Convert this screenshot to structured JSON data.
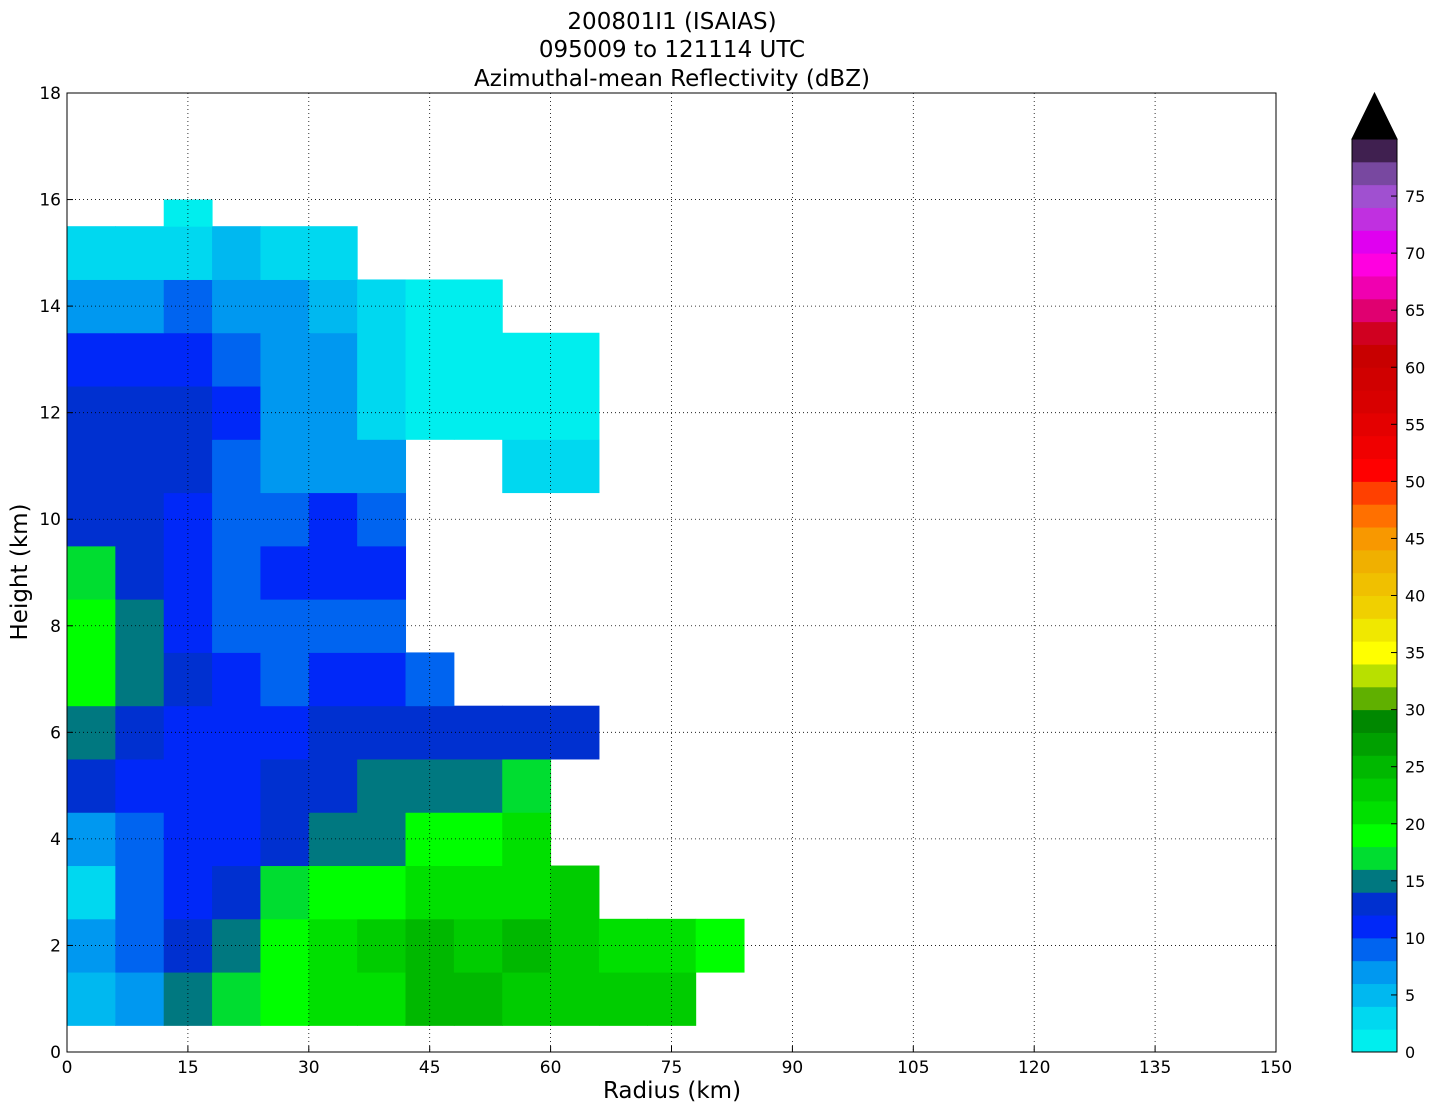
{
  "chart_data": {
    "type": "contourf",
    "title": [
      "200801I1 (ISAIAS)",
      "095009 to 121114 UTC",
      "Azimuthal-mean Reflectivity (dBZ)"
    ],
    "xlabel": "Radius (km)",
    "ylabel": "Height (km)",
    "xlim": [
      0,
      150
    ],
    "ylim": [
      0,
      18
    ],
    "xticks": [
      0,
      15,
      30,
      45,
      60,
      75,
      90,
      105,
      120,
      135,
      150
    ],
    "yticks": [
      0,
      2,
      4,
      6,
      8,
      10,
      12,
      14,
      16,
      18
    ],
    "grid": true,
    "x_edges": [
      0,
      6,
      12,
      18,
      24,
      30,
      36,
      42,
      48,
      54,
      60,
      66,
      72,
      78,
      84
    ],
    "y_edges": [
      0.5,
      1.5,
      2.5,
      3.5,
      4.5,
      5.5,
      6.5,
      7.5,
      8.5,
      9.5,
      10.5,
      11.5,
      12.5,
      13.5,
      14.5,
      15.5,
      16
    ],
    "z": [
      [
        5,
        7,
        15,
        17,
        19,
        21,
        21,
        25,
        25,
        23,
        23,
        23,
        22,
        null
      ],
      [
        7,
        9,
        13,
        15,
        19,
        21,
        23,
        25,
        23,
        25,
        23,
        21,
        21,
        19
      ],
      [
        3,
        8,
        11,
        13,
        17,
        19,
        19,
        21,
        21,
        21,
        23,
        null,
        null,
        null
      ],
      [
        7,
        9,
        11,
        11,
        13,
        15,
        15,
        19,
        19,
        21,
        null,
        null,
        null,
        null
      ],
      [
        13,
        11,
        11,
        11,
        13,
        13,
        15,
        15,
        15,
        17,
        null,
        null,
        null,
        null
      ],
      [
        15,
        13,
        11,
        11,
        11,
        13,
        13,
        13,
        13,
        13,
        13,
        null,
        null,
        null
      ],
      [
        19,
        15,
        13,
        11,
        9,
        11,
        11,
        9,
        null,
        null,
        null,
        null,
        null,
        null
      ],
      [
        19,
        15,
        11,
        9,
        9,
        9,
        9,
        null,
        null,
        null,
        null,
        null,
        null,
        null
      ],
      [
        17,
        13,
        11,
        9,
        11,
        11,
        11,
        null,
        null,
        null,
        null,
        null,
        null,
        null
      ],
      [
        13,
        13,
        11,
        9,
        9,
        11,
        9,
        null,
        null,
        null,
        null,
        null,
        null,
        null
      ],
      [
        13,
        13,
        13,
        9,
        7,
        7,
        7,
        null,
        null,
        3,
        3,
        null,
        null,
        null
      ],
      [
        13,
        13,
        13,
        11,
        7,
        7,
        3,
        1,
        1,
        1,
        1,
        null,
        null,
        null
      ],
      [
        11,
        11,
        11,
        9,
        7,
        7,
        3,
        1,
        1,
        1,
        1,
        null,
        null,
        null
      ],
      [
        7,
        7,
        9,
        7,
        7,
        5,
        3,
        1,
        1,
        null,
        null,
        null,
        null,
        null
      ],
      [
        3,
        3,
        3,
        5,
        3,
        3,
        null,
        null,
        null,
        null,
        null,
        null,
        null,
        null
      ],
      [
        null,
        null,
        1,
        null,
        null,
        null,
        null,
        null,
        null,
        null,
        null,
        null,
        null,
        null
      ]
    ],
    "levels": [
      0,
      2,
      4,
      6,
      8,
      10,
      12,
      14,
      16,
      18,
      20,
      22,
      24,
      26,
      28,
      30,
      32,
      34,
      36,
      38,
      40,
      42,
      44,
      46,
      48,
      50,
      52,
      54,
      56,
      58,
      60,
      62,
      64,
      66,
      68,
      70,
      72,
      74,
      76,
      78,
      80
    ],
    "colors": [
      "#00eeee",
      "#00d8f0",
      "#00b8f0",
      "#0098f0",
      "#0064f0",
      "#0028f8",
      "#0030d0",
      "#007880",
      "#00dd30",
      "#00ff00",
      "#00e000",
      "#00cc00",
      "#00b800",
      "#00a000",
      "#008800",
      "#60b000",
      "#b8e000",
      "#ffff00",
      "#f0e800",
      "#f0d000",
      "#f0c000",
      "#f0b000",
      "#f89800",
      "#ff7000",
      "#ff4000",
      "#ff0000",
      "#f00000",
      "#e40000",
      "#d80000",
      "#d00000",
      "#c80000",
      "#d00020",
      "#e00070",
      "#f000b0",
      "#ff00e0",
      "#e000f0",
      "#c030e0",
      "#a050d0",
      "#7848a0",
      "#402050"
    ],
    "extend_color": "#000000",
    "cbar_ticks": [
      0,
      5,
      10,
      15,
      20,
      25,
      30,
      35,
      40,
      45,
      50,
      55,
      60,
      65,
      70,
      75
    ]
  }
}
